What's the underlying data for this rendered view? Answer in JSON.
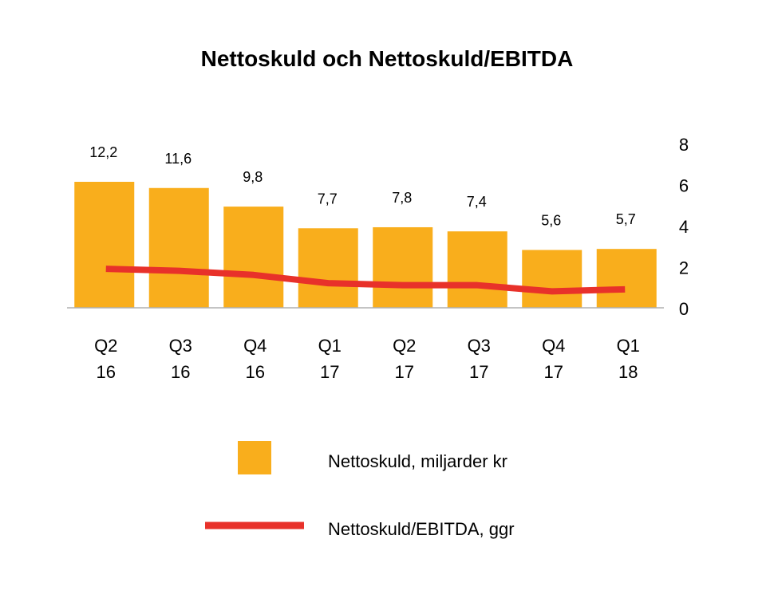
{
  "chart_data": {
    "type": "bar",
    "title": "Nettoskuld och Nettoskuld/EBITDA",
    "categories": [
      {
        "quarter": "Q2",
        "year": "16"
      },
      {
        "quarter": "Q3",
        "year": "16"
      },
      {
        "quarter": "Q4",
        "year": "16"
      },
      {
        "quarter": "Q1",
        "year": "17"
      },
      {
        "quarter": "Q2",
        "year": "17"
      },
      {
        "quarter": "Q3",
        "year": "17"
      },
      {
        "quarter": "Q4",
        "year": "17"
      },
      {
        "quarter": "Q1",
        "year": "18"
      }
    ],
    "series": [
      {
        "name": "Nettoskuld, miljarder kr",
        "type": "bar",
        "color": "#F9AE1C",
        "values": [
          12.2,
          11.6,
          9.8,
          7.7,
          7.8,
          7.4,
          5.6,
          5.7
        ],
        "value_labels": [
          "12,2",
          "11,6",
          "9,8",
          "7,7",
          "7,8",
          "7,4",
          "5,6",
          "5,7"
        ],
        "ylim": [
          0,
          16
        ]
      },
      {
        "name": "Nettoskuld/EBITDA, ggr",
        "type": "line",
        "color": "#E8312A",
        "axis": "right",
        "values": [
          1.9,
          1.8,
          1.6,
          1.2,
          1.1,
          1.1,
          0.8,
          0.9
        ]
      }
    ],
    "right_axis": {
      "ticks": [
        0,
        2,
        4,
        6,
        8
      ],
      "ylim": [
        0,
        8
      ]
    }
  }
}
